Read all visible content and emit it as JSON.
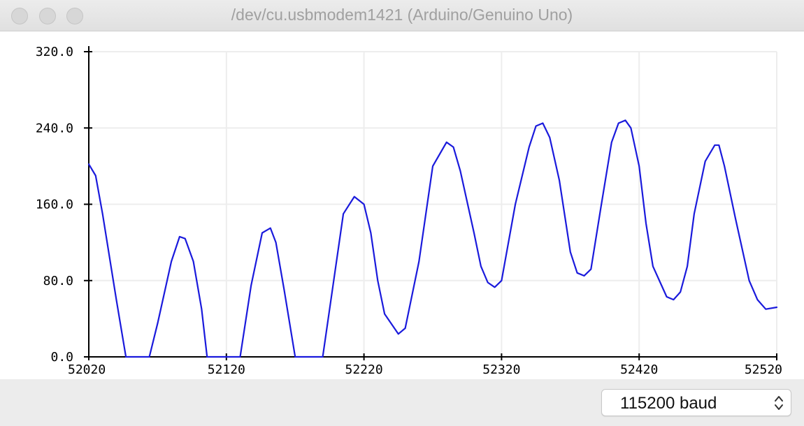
{
  "window": {
    "title": "/dev/cu.usbmodem1421 (Arduino/Genuino Uno)"
  },
  "baud_select": {
    "selected": "115200 baud"
  },
  "colors": {
    "series": "#1a1adc",
    "grid": "#ededed",
    "axis": "#000000"
  },
  "chart_data": {
    "type": "line",
    "title": "",
    "xlabel": "",
    "ylabel": "",
    "xlim": [
      52020,
      52520
    ],
    "ylim": [
      0,
      320
    ],
    "x_ticks": [
      "52020",
      "52120",
      "52220",
      "52320",
      "52420",
      "52520"
    ],
    "y_ticks": [
      "0.0",
      "80.0",
      "160.0",
      "240.0",
      "320.0"
    ],
    "grid": true,
    "series": [
      {
        "name": "",
        "x": [
          52020,
          52025,
          52030,
          52040,
          52047,
          52050,
          52055,
          52064,
          52070,
          52080,
          52086,
          52090,
          52096,
          52102,
          52106,
          52110,
          52116,
          52120,
          52126,
          52130,
          52138,
          52146,
          52152,
          52156,
          52162,
          52170,
          52176,
          52180,
          52185,
          52190,
          52199,
          52205,
          52213,
          52220,
          52225,
          52230,
          52235,
          52245,
          52250,
          52260,
          52266,
          52270,
          52280,
          52285,
          52290,
          52300,
          52305,
          52310,
          52315,
          52320,
          52330,
          52340,
          52345,
          52350,
          52355,
          52362,
          52370,
          52375,
          52380,
          52385,
          52392,
          52400,
          52405,
          52410,
          52414,
          52420,
          52425,
          52430,
          52440,
          52445,
          52450,
          52455,
          52460,
          52468,
          52475,
          52478,
          52482,
          52490,
          52500,
          52506,
          52512,
          52520
        ],
        "y": [
          202,
          190,
          150,
          60,
          0,
          0,
          0,
          0,
          35,
          100,
          126,
          124,
          100,
          50,
          0,
          0,
          0,
          0,
          0,
          0,
          75,
          130,
          135,
          120,
          70,
          0,
          0,
          0,
          0,
          0,
          90,
          150,
          168,
          160,
          130,
          80,
          45,
          24,
          30,
          100,
          160,
          200,
          225,
          220,
          195,
          130,
          95,
          78,
          73,
          80,
          160,
          220,
          242,
          245,
          230,
          185,
          110,
          88,
          85,
          92,
          155,
          225,
          245,
          248,
          240,
          200,
          140,
          95,
          63,
          60,
          68,
          95,
          150,
          205,
          222,
          222,
          200,
          145,
          80,
          60,
          50,
          52
        ]
      }
    ]
  }
}
